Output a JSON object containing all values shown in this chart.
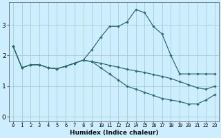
{
  "xlabel": "Humidex (Indice chaleur)",
  "bg_color": "#cceeff",
  "grid_color": "#aacccc",
  "line_color": "#2e6e6e",
  "x_ticks": [
    0,
    1,
    2,
    3,
    4,
    5,
    6,
    7,
    8,
    9,
    10,
    11,
    12,
    13,
    14,
    15,
    16,
    17,
    18,
    19,
    20,
    21,
    22,
    23
  ],
  "y_ticks": [
    0,
    1,
    2,
    3
  ],
  "ylim": [
    -0.15,
    3.75
  ],
  "xlim": [
    -0.5,
    23.5
  ],
  "lines": [
    {
      "x": [
        0,
        1,
        2,
        3,
        4,
        5,
        6,
        7,
        8,
        9,
        10,
        11,
        12,
        13,
        14,
        15,
        16,
        17,
        18,
        19,
        20,
        21,
        22,
        23
      ],
      "y": [
        2.3,
        1.6,
        1.7,
        1.7,
        1.6,
        1.57,
        1.65,
        1.75,
        1.85,
        2.2,
        2.6,
        2.95,
        2.95,
        3.1,
        3.5,
        3.4,
        2.95,
        2.7,
        2.0,
        1.4,
        1.4,
        1.4,
        1.4,
        1.4
      ]
    },
    {
      "x": [
        0,
        1,
        2,
        3,
        4,
        5,
        6,
        7,
        8,
        9,
        10,
        11,
        12,
        13,
        14,
        15,
        16,
        17,
        18,
        19,
        20,
        21,
        22,
        23
      ],
      "y": [
        2.3,
        1.6,
        1.7,
        1.7,
        1.6,
        1.57,
        1.65,
        1.75,
        1.85,
        1.8,
        1.75,
        1.68,
        1.62,
        1.55,
        1.5,
        1.45,
        1.38,
        1.32,
        1.25,
        1.15,
        1.05,
        0.95,
        0.9,
        1.0
      ]
    },
    {
      "x": [
        0,
        1,
        2,
        3,
        4,
        5,
        6,
        7,
        8,
        9,
        10,
        11,
        12,
        13,
        14,
        15,
        16,
        17,
        18,
        19,
        20,
        21,
        22,
        23
      ],
      "y": [
        2.3,
        1.6,
        1.7,
        1.7,
        1.6,
        1.57,
        1.65,
        1.75,
        1.85,
        1.8,
        1.6,
        1.4,
        1.2,
        1.0,
        0.9,
        0.8,
        0.7,
        0.6,
        0.55,
        0.5,
        0.42,
        0.42,
        0.55,
        0.72
      ]
    }
  ]
}
